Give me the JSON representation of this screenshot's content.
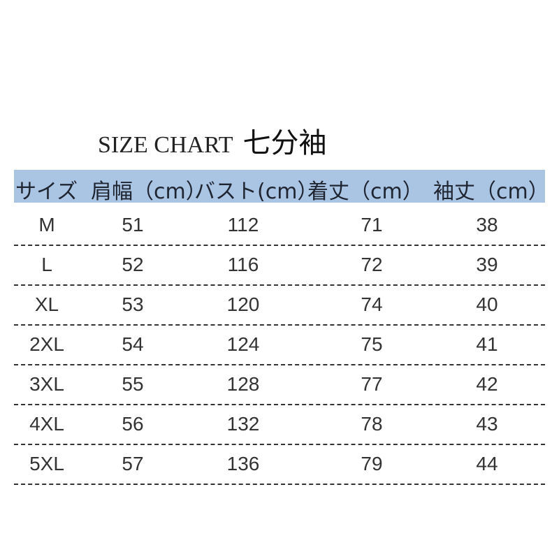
{
  "title": {
    "english": "SIZE CHART",
    "japanese": "七分袖"
  },
  "header_color": "#aac4e4",
  "columns": [
    "サイズ",
    "肩幅（cm）",
    "バスト(cm）",
    "着丈（cm）",
    "袖丈（cm）"
  ],
  "rows": [
    [
      "M",
      "51",
      "112",
      "71",
      "38"
    ],
    [
      "L",
      "52",
      "116",
      "72",
      "39"
    ],
    [
      "XL",
      "53",
      "120",
      "74",
      "40"
    ],
    [
      "2XL",
      "54",
      "124",
      "75",
      "41"
    ],
    [
      "3XL",
      "55",
      "128",
      "77",
      "42"
    ],
    [
      "4XL",
      "56",
      "132",
      "78",
      "43"
    ],
    [
      "5XL",
      "57",
      "136",
      "79",
      "44"
    ]
  ]
}
